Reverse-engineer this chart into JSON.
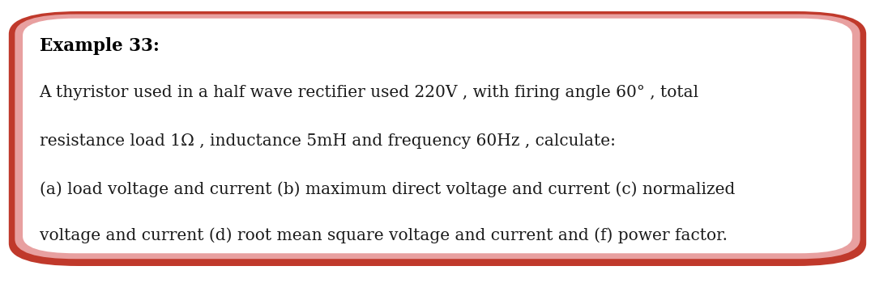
{
  "title": "Example 33:",
  "line1": "A thyristor used in a half wave rectifier used 220V , with firing angle 60° , total",
  "line2": "resistance load 1Ω , inductance 5mH and frequency 60Hz , calculate:",
  "line3": "(a) load voltage and current (b) maximum direct voltage and current (c) normalized",
  "line4": "voltage and current (d) root mean square voltage and current and (f) power factor.",
  "bg_color": "#ffffff",
  "outer_border_color": "#c0392b",
  "inner_border_color": "#e8a0a0",
  "text_color": "#1a1a1a",
  "title_color": "#000000",
  "font_size": 14.5,
  "title_font_size": 15.5,
  "fig_bg": "#ffffff"
}
